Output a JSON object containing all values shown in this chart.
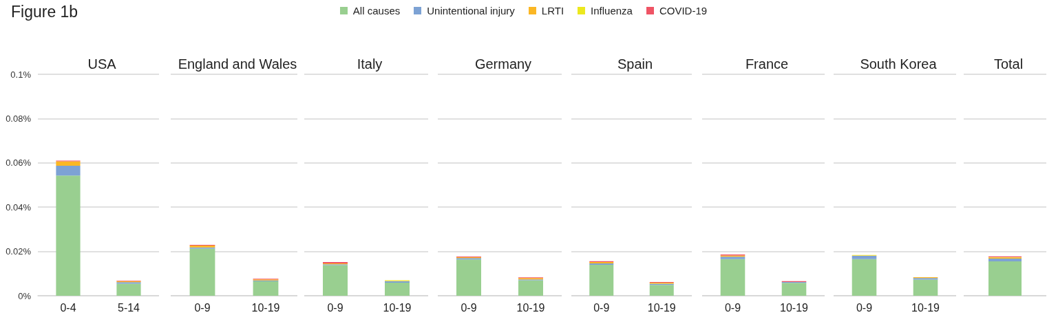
{
  "chart_data": [
    {
      "type": "bar",
      "title": "USA",
      "annotations": [
        "Figure 1b"
      ],
      "categories": [
        "0-4",
        "5-14"
      ],
      "stacked": true,
      "legend": "top",
      "grid": "y",
      "ylim": [
        0,
        0.1
      ],
      "yticks": [
        {
          "value": 0,
          "label": "0%"
        },
        {
          "value": 0.02,
          "label": "0.02%"
        },
        {
          "value": 0.04,
          "label": "0.04%"
        },
        {
          "value": 0.06,
          "label": "0.06%"
        },
        {
          "value": 0.08,
          "label": "0.08%"
        },
        {
          "value": 0.1,
          "label": "0.1%"
        }
      ],
      "series": [
        {
          "name": "All causes",
          "color": "#99cf90",
          "values": [
            0.0543,
            0.0054
          ]
        },
        {
          "name": "Unintentional injury",
          "color": "#7da2d4",
          "values": [
            0.0044,
            0.0007
          ]
        },
        {
          "name": "LRTI",
          "color": "#fbb724",
          "values": [
            0.002,
            0.0005
          ]
        },
        {
          "name": "Influenza",
          "color": "#ece81e",
          "values": [
            null,
            null
          ]
        },
        {
          "name": "COVID-19",
          "color": "#ef5465",
          "values": [
            0.0003,
            0.0002
          ]
        }
      ]
    },
    {
      "type": "bar",
      "title": "England and Wales",
      "categories": [
        "0-9",
        "10-19"
      ],
      "stacked": true,
      "grid": "y",
      "tick_labels": "x",
      "ylim": [
        0,
        0.1
      ],
      "yticks": [
        0,
        0.02,
        0.04,
        0.06,
        0.08,
        0.1
      ],
      "series": [
        {
          "color": "#99cf90",
          "values": [
            0.0213,
            0.0065
          ]
        },
        {
          "color": "#7da2d4",
          "values": [
            0.0005,
            0.0004
          ]
        },
        {
          "color": "#fbb724",
          "values": [
            0.0009,
            0.0005
          ]
        },
        {
          "color": "#ef5465",
          "values": [
            0.0003,
            0.0003
          ]
        }
      ]
    },
    {
      "type": "bar",
      "title": "Italy",
      "categories": [
        "0-9",
        "10-19"
      ],
      "stacked": true,
      "grid": "y",
      "tick_labels": "x",
      "ylim": [
        0,
        0.1
      ],
      "yticks": [
        0,
        0.02,
        0.04,
        0.06,
        0.08,
        0.1
      ],
      "series": [
        {
          "color": "#99cf90",
          "values": [
            0.0138,
            0.0059
          ]
        },
        {
          "color": "#7da2d4",
          "values": [
            0.0004,
            0.0006
          ]
        },
        {
          "color": "#fbb724",
          "values": [
            0.0004,
            0.0002
          ]
        },
        {
          "color": "#ece81e",
          "values": [
            null,
            0.0003
          ]
        },
        {
          "color": "#ef5465",
          "values": [
            0.0006,
            null
          ]
        }
      ]
    },
    {
      "type": "bar",
      "title": "Germany",
      "categories": [
        "0-9",
        "10-19"
      ],
      "stacked": true,
      "grid": "y",
      "tick_labels": "x",
      "ylim": [
        0,
        0.1
      ],
      "yticks": [
        0,
        0.02,
        0.04,
        0.06,
        0.08,
        0.1
      ],
      "series": [
        {
          "color": "#99cf90",
          "values": [
            0.0164,
            0.007
          ]
        },
        {
          "color": "#7da2d4",
          "values": [
            0.0006,
            0.0004
          ]
        },
        {
          "color": "#fbb724",
          "values": [
            0.0004,
            0.0006
          ]
        },
        {
          "color": "#ef5465",
          "values": [
            0.0003,
            0.0003
          ]
        }
      ]
    },
    {
      "type": "bar",
      "title": "Spain",
      "categories": [
        "0-9",
        "10-19"
      ],
      "stacked": true,
      "grid": "y",
      "tick_labels": "x",
      "ylim": [
        0,
        0.1
      ],
      "yticks": [
        0,
        0.02,
        0.04,
        0.06,
        0.08,
        0.1
      ],
      "series": [
        {
          "color": "#99cf90",
          "values": [
            0.014,
            0.0049
          ]
        },
        {
          "color": "#7da2d4",
          "values": [
            0.0006,
            0.0005
          ]
        },
        {
          "color": "#fbb724",
          "values": [
            0.0006,
            0.0005
          ]
        },
        {
          "color": "#ef5465",
          "values": [
            0.0004,
            0.0003
          ]
        }
      ]
    },
    {
      "type": "bar",
      "title": "France",
      "categories": [
        "0-9",
        "10-19"
      ],
      "stacked": true,
      "grid": "y",
      "tick_labels": "x",
      "ylim": [
        0,
        0.1
      ],
      "yticks": [
        0,
        0.02,
        0.04,
        0.06,
        0.08,
        0.1
      ],
      "series": [
        {
          "color": "#99cf90",
          "values": [
            0.0165,
            0.0058
          ]
        },
        {
          "color": "#7da2d4",
          "values": [
            0.0011,
            0.0004
          ]
        },
        {
          "color": "#fbb724",
          "values": [
            0.0006,
            null
          ]
        },
        {
          "color": "#ef5465",
          "values": [
            0.0004,
            0.0004
          ]
        }
      ]
    },
    {
      "type": "bar",
      "title": "South Korea",
      "categories": [
        "0-9",
        "10-19"
      ],
      "stacked": true,
      "grid": "y",
      "tick_labels": "x",
      "ylim": [
        0,
        0.1
      ],
      "yticks": [
        0,
        0.02,
        0.04,
        0.06,
        0.08,
        0.1
      ],
      "series": [
        {
          "color": "#99cf90",
          "values": [
            0.0165,
            0.0073
          ]
        },
        {
          "color": "#7da2d4",
          "values": [
            0.0015,
            0.0007
          ]
        },
        {
          "color": "#fbb724",
          "values": [
            0.0002,
            0.0004
          ]
        },
        {
          "color": "#ece81e",
          "values": [
            0.0002,
            null
          ]
        }
      ]
    },
    {
      "type": "bar",
      "title": "Total",
      "categories": [
        null
      ],
      "stacked": true,
      "grid": "y",
      "tick_labels": false,
      "ylim": [
        0,
        0.1
      ],
      "yticks": [
        0,
        0.02,
        0.04,
        0.06,
        0.08,
        0.1
      ],
      "series": [
        {
          "color": "#99cf90",
          "values": [
            0.0155
          ]
        },
        {
          "color": "#7da2d4",
          "values": [
            0.0013
          ]
        },
        {
          "color": "#fbb724",
          "values": [
            0.0004
          ]
        },
        {
          "color": "#ece81e",
          "values": [
            0.0002
          ]
        },
        {
          "color": "#ef5465",
          "values": [
            0.0004
          ]
        }
      ]
    }
  ]
}
